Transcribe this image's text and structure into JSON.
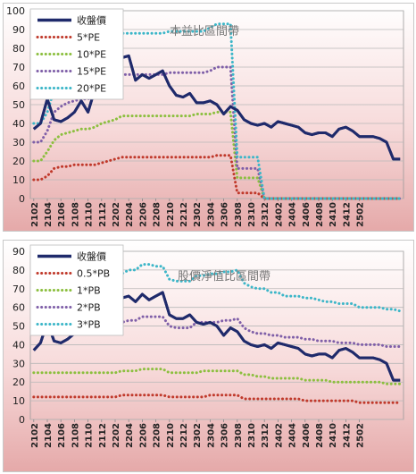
{
  "chart_data": [
    {
      "type": "line",
      "title": "本益比區間帶",
      "ylim": [
        0,
        100
      ],
      "yticks": [
        0,
        10,
        20,
        30,
        40,
        50,
        60,
        70,
        80,
        90,
        100
      ],
      "xtick_labels": [
        "2102",
        "2104",
        "2106",
        "2108",
        "2110",
        "2112",
        "2202",
        "2204",
        "2206",
        "2208",
        "2210",
        "2212",
        "2302",
        "2304",
        "2306",
        "2308",
        "2310",
        "2312",
        "2402",
        "2404",
        "2406",
        "2408",
        "2410",
        "2412",
        "2502"
      ],
      "grid": true,
      "legend_position": "top-left",
      "series": [
        {
          "name": "收盤價",
          "color": "#1f2a6b",
          "style": "solid",
          "values": [
            37,
            40,
            53,
            42,
            41,
            43,
            46,
            52,
            46,
            58,
            68,
            69,
            74,
            75,
            76,
            63,
            66,
            64,
            66,
            68,
            60,
            55,
            54,
            56,
            51,
            51,
            52,
            50,
            45,
            49,
            47,
            42,
            40,
            39,
            40,
            38,
            41,
            40,
            39,
            38,
            35,
            34,
            35,
            35,
            33,
            37,
            38,
            36,
            33,
            33,
            33,
            32,
            30,
            21,
            21
          ]
        },
        {
          "name": "5*PE",
          "color": "#c0392b",
          "style": "dotted",
          "values": [
            10,
            10,
            12,
            16,
            17,
            17,
            18,
            18,
            18,
            18,
            19,
            20,
            21,
            22,
            22,
            22,
            22,
            22,
            22,
            22,
            22,
            22,
            22,
            22,
            22,
            22,
            22,
            23,
            23,
            23,
            3,
            3,
            3,
            3,
            0,
            0,
            0,
            0,
            0,
            0,
            0,
            0,
            0,
            0,
            0,
            0,
            0,
            0,
            0,
            0,
            0,
            0,
            0,
            0,
            0
          ]
        },
        {
          "name": "10*PE",
          "color": "#8cbf3f",
          "style": "dotted",
          "values": [
            20,
            20,
            25,
            31,
            34,
            35,
            36,
            37,
            37,
            38,
            40,
            41,
            42,
            44,
            44,
            44,
            44,
            44,
            44,
            44,
            44,
            44,
            44,
            44,
            45,
            45,
            45,
            46,
            46,
            46,
            11,
            11,
            11,
            11,
            0,
            0,
            0,
            0,
            0,
            0,
            0,
            0,
            0,
            0,
            0,
            0,
            0,
            0,
            0,
            0,
            0,
            0,
            0,
            0,
            0
          ]
        },
        {
          "name": "15*PE",
          "color": "#7f5fa8",
          "style": "dotted",
          "values": [
            30,
            30,
            36,
            46,
            49,
            51,
            52,
            53,
            53,
            54,
            57,
            59,
            62,
            66,
            66,
            66,
            66,
            66,
            66,
            66,
            67,
            67,
            67,
            67,
            67,
            67,
            68,
            70,
            70,
            70,
            16,
            16,
            16,
            16,
            0,
            0,
            0,
            0,
            0,
            0,
            0,
            0,
            0,
            0,
            0,
            0,
            0,
            0,
            0,
            0,
            0,
            0,
            0,
            0,
            0
          ]
        },
        {
          "name": "20*PE",
          "color": "#3cb6c8",
          "style": "dotted",
          "values": [
            40,
            40,
            46,
            58,
            63,
            68,
            70,
            71,
            72,
            74,
            76,
            79,
            83,
            88,
            88,
            88,
            88,
            88,
            88,
            88,
            89,
            89,
            89,
            89,
            89,
            89,
            91,
            93,
            93,
            93,
            22,
            22,
            22,
            22,
            0,
            0,
            0,
            0,
            0,
            0,
            0,
            0,
            0,
            0,
            0,
            0,
            0,
            0,
            0,
            0,
            0,
            0,
            0,
            0,
            0
          ]
        }
      ]
    },
    {
      "type": "line",
      "title": "股價淨值比區間帶",
      "ylim": [
        0,
        90
      ],
      "yticks": [
        0,
        10,
        20,
        30,
        40,
        50,
        60,
        70,
        80,
        90
      ],
      "xtick_labels": [
        "2102",
        "2104",
        "2106",
        "2108",
        "2110",
        "2112",
        "2202",
        "2204",
        "2206",
        "2208",
        "2210",
        "2212",
        "2302",
        "2304",
        "2306",
        "2308",
        "2310",
        "2312",
        "2402",
        "2404",
        "2406",
        "2408",
        "2410",
        "2412",
        "2502"
      ],
      "grid": true,
      "legend_position": "top-left",
      "series": [
        {
          "name": "收盤價",
          "color": "#1f2a6b",
          "style": "solid",
          "values": [
            37,
            41,
            52,
            42,
            41,
            43,
            46,
            52,
            46,
            57,
            63,
            62,
            63,
            65,
            66,
            63,
            67,
            64,
            66,
            68,
            56,
            54,
            54,
            56,
            52,
            51,
            52,
            50,
            45,
            49,
            47,
            42,
            40,
            39,
            40,
            38,
            41,
            40,
            39,
            38,
            35,
            34,
            35,
            35,
            33,
            37,
            38,
            36,
            33,
            33,
            33,
            32,
            30,
            21,
            21
          ]
        },
        {
          "name": "0.5*PB",
          "color": "#c0392b",
          "style": "dotted",
          "values": [
            12,
            12,
            12,
            12,
            12,
            12,
            12,
            12,
            12,
            12,
            12,
            12,
            12,
            13,
            13,
            13,
            13,
            13,
            13,
            13,
            12,
            12,
            12,
            12,
            12,
            12,
            13,
            13,
            13,
            13,
            13,
            11,
            11,
            11,
            11,
            11,
            11,
            11,
            11,
            11,
            10,
            10,
            10,
            10,
            10,
            10,
            10,
            10,
            9,
            9,
            9,
            9,
            9,
            9,
            9
          ]
        },
        {
          "name": "1*PB",
          "color": "#8cbf3f",
          "style": "dotted",
          "values": [
            25,
            25,
            25,
            25,
            25,
            25,
            25,
            25,
            25,
            25,
            25,
            25,
            25,
            26,
            26,
            26,
            27,
            27,
            27,
            27,
            25,
            25,
            25,
            25,
            25,
            26,
            26,
            26,
            26,
            26,
            26,
            24,
            24,
            23,
            23,
            22,
            22,
            22,
            22,
            22,
            21,
            21,
            21,
            21,
            20,
            20,
            20,
            20,
            20,
            20,
            20,
            20,
            19,
            19,
            19
          ]
        },
        {
          "name": "2*PB",
          "color": "#7f5fa8",
          "style": "dotted",
          "values": [
            50,
            50,
            50,
            50,
            50,
            50,
            50,
            50,
            50,
            50,
            50,
            51,
            51,
            52,
            53,
            53,
            55,
            55,
            55,
            55,
            50,
            49,
            49,
            49,
            52,
            52,
            52,
            52,
            53,
            53,
            54,
            49,
            47,
            46,
            46,
            45,
            45,
            44,
            44,
            44,
            43,
            43,
            42,
            42,
            42,
            41,
            41,
            41,
            40,
            40,
            40,
            40,
            39,
            39,
            39
          ]
        },
        {
          "name": "3*PB",
          "color": "#3cb6c8",
          "style": "dotted",
          "values": [
            75,
            75,
            75,
            75,
            75,
            75,
            75,
            75,
            75,
            75,
            75,
            76,
            76,
            78,
            80,
            80,
            83,
            83,
            82,
            82,
            75,
            74,
            74,
            74,
            77,
            77,
            78,
            78,
            79,
            79,
            80,
            73,
            71,
            70,
            70,
            68,
            68,
            66,
            66,
            66,
            65,
            65,
            64,
            63,
            63,
            62,
            62,
            62,
            60,
            60,
            60,
            60,
            59,
            59,
            58
          ]
        }
      ]
    }
  ]
}
